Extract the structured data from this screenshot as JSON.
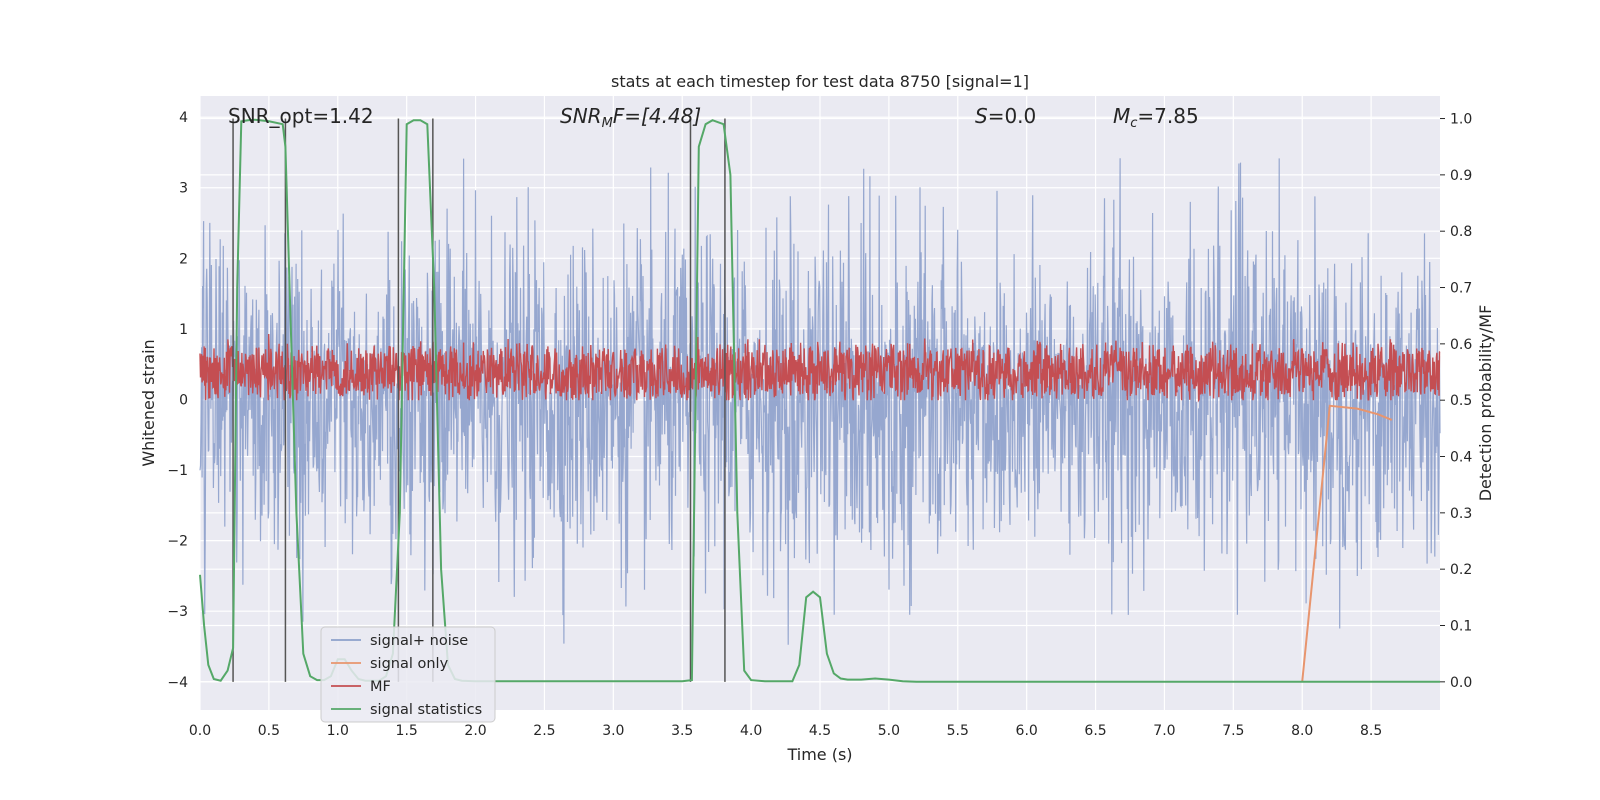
{
  "chart_data": {
    "type": "line",
    "title": "stats at each timestep for test data 8750 [signal=1]",
    "xlabel": "Time (s)",
    "ylabel": "Whitened strain",
    "ylabel_right": "Detection probability/MF",
    "xlim": [
      0.0,
      9.0
    ],
    "ylim": [
      -4.4,
      4.3
    ],
    "ylim_right": [
      -0.05,
      1.04
    ],
    "x_ticks": [
      "0.0",
      "0.5",
      "1.0",
      "1.5",
      "2.0",
      "2.5",
      "3.0",
      "3.5",
      "4.0",
      "4.5",
      "5.0",
      "5.5",
      "6.0",
      "6.5",
      "7.0",
      "7.5",
      "8.0",
      "8.5"
    ],
    "y_ticks": [
      "4",
      "3",
      "2",
      "1",
      "0",
      "−1",
      "−2",
      "−3",
      "−4"
    ],
    "y_right_ticks": [
      "1.0",
      "0.9",
      "0.8",
      "0.7",
      "0.6",
      "0.5",
      "0.4",
      "0.3",
      "0.2",
      "0.1",
      "0.0"
    ],
    "annotations": {
      "snr_opt": "SNR_opt=1.42",
      "snr_mf_main": "SNR",
      "snr_mf_sub": "M",
      "snr_mf_tail": "F=[4.48]",
      "s_main": "S",
      "s_tail": "=0.0",
      "mc_main": "M",
      "mc_sub": "c",
      "mc_tail": "=7.85"
    },
    "series": [
      {
        "name": "signal+ noise",
        "color": "#8da0cb",
        "kind": "noise",
        "amplitude": "approx ±3.5 whitened strain",
        "x_range": [
          0.0,
          9.0
        ]
      },
      {
        "name": "signal only",
        "color": "#e8956e",
        "kind": "chirp",
        "x": [
          8.0,
          8.2,
          8.4,
          8.55,
          8.65
        ],
        "y": [
          0.0,
          0.49,
          0.485,
          0.475,
          0.465
        ]
      },
      {
        "name": "MF",
        "color": "#c44e52",
        "kind": "band",
        "mean": 0.55,
        "range": [
          0.5,
          0.63
        ],
        "x_range": [
          0.0,
          9.0
        ]
      },
      {
        "name": "signal statistics",
        "color": "#55a868",
        "x": [
          0.0,
          0.03,
          0.06,
          0.1,
          0.15,
          0.2,
          0.24,
          0.27,
          0.3,
          0.35,
          0.4,
          0.5,
          0.6,
          0.62,
          0.65,
          0.7,
          0.75,
          0.8,
          0.85,
          0.9,
          0.95,
          1.0,
          1.05,
          1.1,
          1.15,
          1.2,
          1.3,
          1.35,
          1.4,
          1.45,
          1.5,
          1.55,
          1.6,
          1.65,
          1.7,
          1.75,
          1.8,
          1.85,
          1.9,
          2.0,
          2.5,
          3.0,
          3.5,
          3.57,
          3.62,
          3.67,
          3.72,
          3.8,
          3.85,
          3.9,
          3.95,
          4.0,
          4.1,
          4.2,
          4.3,
          4.35,
          4.4,
          4.45,
          4.5,
          4.55,
          4.6,
          4.65,
          4.7,
          4.8,
          4.9,
          5.0,
          5.1,
          5.2,
          6.0,
          7.0,
          8.0,
          9.0
        ],
        "y": [
          0.19,
          0.1,
          0.03,
          0.005,
          0.002,
          0.02,
          0.06,
          0.7,
          0.995,
          0.997,
          0.998,
          0.995,
          0.99,
          0.95,
          0.7,
          0.3,
          0.05,
          0.01,
          0.003,
          0.003,
          0.01,
          0.04,
          0.04,
          0.02,
          0.005,
          0.002,
          0.002,
          0.01,
          0.05,
          0.3,
          0.99,
          0.997,
          0.997,
          0.99,
          0.7,
          0.2,
          0.03,
          0.005,
          0.002,
          0.001,
          0.001,
          0.001,
          0.001,
          0.003,
          0.95,
          0.99,
          0.997,
          0.99,
          0.9,
          0.3,
          0.02,
          0.003,
          0.001,
          0.001,
          0.001,
          0.03,
          0.15,
          0.16,
          0.15,
          0.05,
          0.015,
          0.006,
          0.004,
          0.004,
          0.006,
          0.004,
          0.001,
          0.0,
          0.0,
          0.0,
          0.0,
          0.0
        ]
      }
    ],
    "vertical_lines_x": [
      0.24,
      0.62,
      1.44,
      1.69,
      3.56,
      3.81
    ],
    "legend": [
      "signal+ noise",
      "signal only",
      "MF",
      "signal statistics"
    ],
    "legend_location": "lower-left",
    "grid": true
  }
}
